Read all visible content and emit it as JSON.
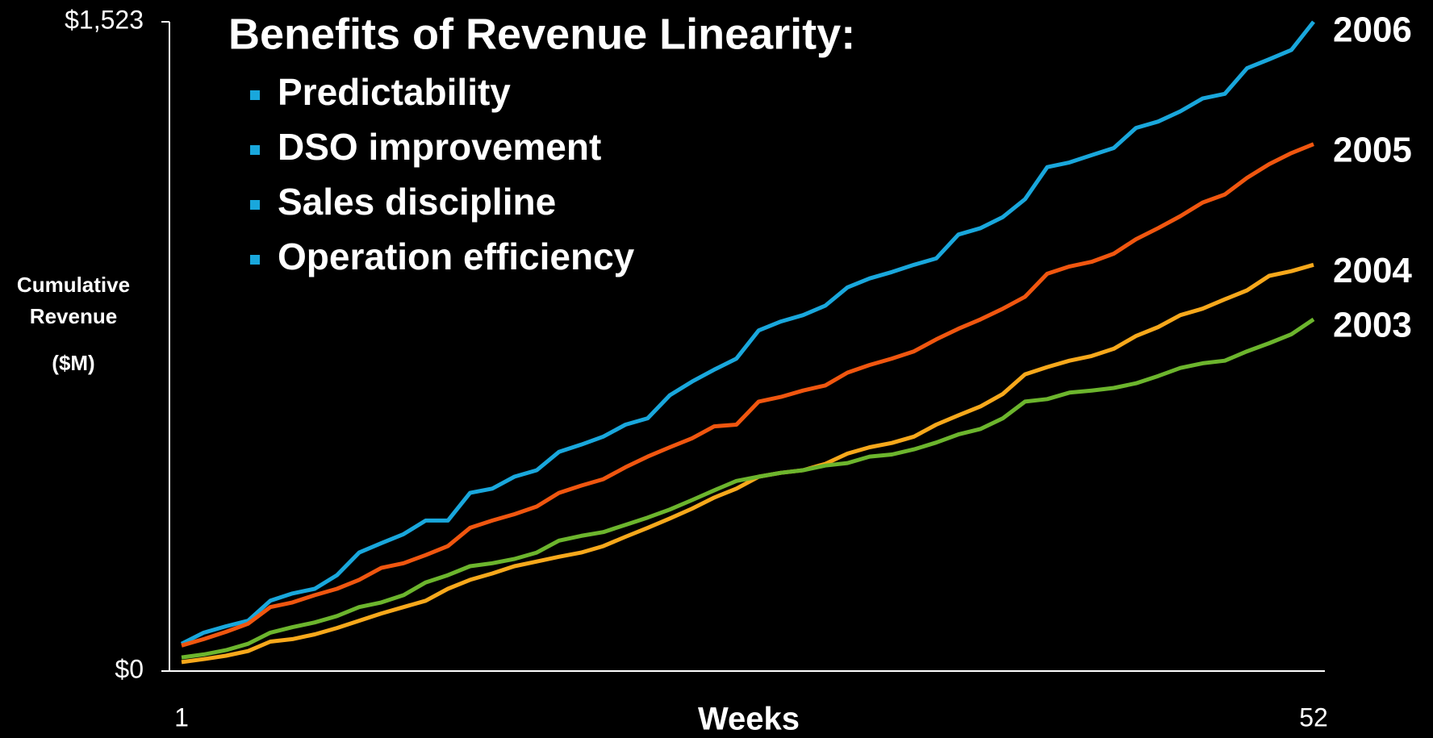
{
  "chart_data": {
    "type": "line",
    "title": "Benefits of Revenue Linearity:",
    "bullets": [
      "Predictability",
      "DSO improvement",
      "Sales discipline",
      "Operation efficiency"
    ],
    "ylabel": [
      "Cumulative",
      "Revenue",
      "($M)"
    ],
    "xlabel": "Weeks",
    "x": [
      1,
      2,
      3,
      4,
      5,
      6,
      7,
      8,
      9,
      10,
      11,
      12,
      13,
      14,
      15,
      16,
      17,
      18,
      19,
      20,
      21,
      22,
      23,
      24,
      25,
      26,
      27,
      28,
      29,
      30,
      31,
      32,
      33,
      34,
      35,
      36,
      37,
      38,
      39,
      40,
      41,
      42,
      43,
      44,
      45,
      46,
      47,
      48,
      49,
      50,
      51,
      52
    ],
    "xlim": [
      1,
      52
    ],
    "xticks": [
      1,
      52
    ],
    "ylim": [
      0,
      1523
    ],
    "yticks": [
      {
        "value": 0,
        "label": "$0"
      },
      {
        "value": 1523,
        "label": "$1,523"
      }
    ],
    "series": [
      {
        "name": "2006",
        "color": "#19a7dc",
        "values": [
          64,
          90,
          105,
          118,
          165,
          182,
          193,
          225,
          278,
          300,
          321,
          353,
          353,
          418,
          428,
          456,
          471,
          514,
          531,
          550,
          578,
          593,
          647,
          679,
          707,
          733,
          799,
          820,
          835,
          857,
          900,
          921,
          936,
          953,
          968,
          1024,
          1039,
          1065,
          1107,
          1182,
          1193,
          1210,
          1227,
          1274,
          1289,
          1313,
          1343,
          1354,
          1414,
          1435,
          1457,
          1523
        ]
      },
      {
        "name": "2005",
        "color": "#f0560f",
        "values": [
          60,
          75,
          92,
          111,
          150,
          161,
          178,
          193,
          214,
          242,
          253,
          272,
          293,
          336,
          353,
          368,
          386,
          418,
          435,
          450,
          478,
          503,
          525,
          546,
          574,
          578,
          632,
          643,
          658,
          670,
          700,
          718,
          733,
          750,
          778,
          803,
          825,
          850,
          878,
          932,
          949,
          960,
          979,
          1013,
          1039,
          1067,
          1099,
          1118,
          1157,
          1189,
          1215,
          1236
        ]
      },
      {
        "name": "2004",
        "color": "#f7a81b",
        "values": [
          21,
          28,
          36,
          47,
          69,
          75,
          86,
          101,
          118,
          135,
          150,
          165,
          193,
          214,
          229,
          246,
          257,
          268,
          278,
          293,
          315,
          336,
          358,
          381,
          407,
          428,
          456,
          465,
          471,
          486,
          510,
          525,
          535,
          550,
          578,
          600,
          621,
          650,
          696,
          713,
          728,
          739,
          756,
          786,
          807,
          835,
          850,
          872,
          893,
          927,
          938,
          953
        ]
      },
      {
        "name": "2003",
        "color": "#6cb52d",
        "values": [
          32,
          39,
          49,
          64,
          90,
          103,
          114,
          129,
          150,
          161,
          178,
          208,
          225,
          246,
          253,
          263,
          278,
          306,
          317,
          326,
          343,
          360,
          379,
          401,
          424,
          446,
          456,
          465,
          471,
          482,
          488,
          503,
          508,
          520,
          536,
          555,
          568,
          593,
          632,
          638,
          653,
          658,
          664,
          675,
          692,
          711,
          722,
          728,
          750,
          769,
          790,
          825
        ]
      }
    ]
  }
}
